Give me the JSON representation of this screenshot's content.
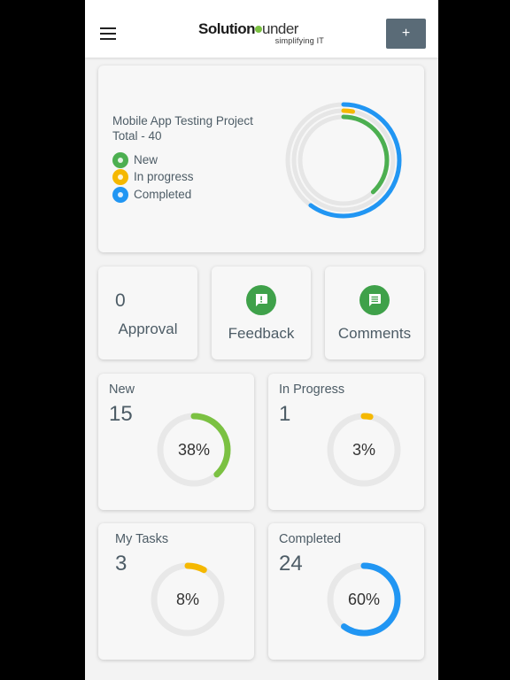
{
  "header": {
    "logo_part1": "Solution",
    "logo_part2": "under",
    "logo_tagline": "simplifying IT",
    "add_label": "+"
  },
  "project": {
    "title": "Mobile App Testing Project",
    "total": "Total - 40",
    "legend": [
      {
        "label": "New",
        "color": "#4caf50"
      },
      {
        "label": "In progress",
        "color": "#f5b800"
      },
      {
        "label": "Completed",
        "color": "#2196f3"
      }
    ],
    "rings": {
      "new": 0.38,
      "in_progress": 0.03,
      "completed": 0.6
    }
  },
  "shortcuts": {
    "approval": {
      "count": "0",
      "label": "Approval"
    },
    "feedback": {
      "label": "Feedback",
      "icon": "feedback-icon"
    },
    "comments": {
      "label": "Comments",
      "icon": "comment-icon"
    }
  },
  "stats": [
    {
      "title": "New",
      "count": "15",
      "percent_label": "38%",
      "percent": 0.38,
      "color": "#7bc142"
    },
    {
      "title": "In Progress",
      "count": "1",
      "percent_label": "3%",
      "percent": 0.03,
      "color": "#f5b800"
    },
    {
      "title": "My Tasks",
      "count": "3",
      "percent_label": "8%",
      "percent": 0.08,
      "color": "#f5b800"
    },
    {
      "title": "Completed",
      "count": "24",
      "percent_label": "60%",
      "percent": 0.6,
      "color": "#2196f3"
    }
  ]
}
